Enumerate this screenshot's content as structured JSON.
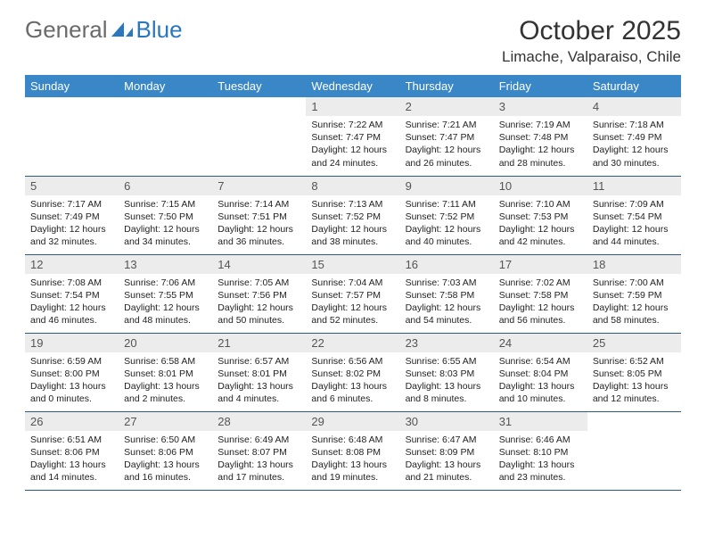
{
  "brand": {
    "general": "General",
    "blue": "Blue"
  },
  "title": "October 2025",
  "location": "Limache, Valparaiso, Chile",
  "colors": {
    "header_bg": "#3a87c8",
    "header_text": "#ffffff",
    "daynum_bg": "#ececec",
    "daynum_text": "#555555",
    "body_text": "#222222",
    "row_border": "#2a5a8c",
    "logo_gray": "#6a6a6a",
    "logo_blue": "#2a77bd"
  },
  "weekdays": [
    "Sunday",
    "Monday",
    "Tuesday",
    "Wednesday",
    "Thursday",
    "Friday",
    "Saturday"
  ],
  "weeks": [
    [
      {
        "n": "",
        "lines": []
      },
      {
        "n": "",
        "lines": []
      },
      {
        "n": "",
        "lines": []
      },
      {
        "n": "1",
        "lines": [
          "Sunrise: 7:22 AM",
          "Sunset: 7:47 PM",
          "Daylight: 12 hours and 24 minutes."
        ]
      },
      {
        "n": "2",
        "lines": [
          "Sunrise: 7:21 AM",
          "Sunset: 7:47 PM",
          "Daylight: 12 hours and 26 minutes."
        ]
      },
      {
        "n": "3",
        "lines": [
          "Sunrise: 7:19 AM",
          "Sunset: 7:48 PM",
          "Daylight: 12 hours and 28 minutes."
        ]
      },
      {
        "n": "4",
        "lines": [
          "Sunrise: 7:18 AM",
          "Sunset: 7:49 PM",
          "Daylight: 12 hours and 30 minutes."
        ]
      }
    ],
    [
      {
        "n": "5",
        "lines": [
          "Sunrise: 7:17 AM",
          "Sunset: 7:49 PM",
          "Daylight: 12 hours and 32 minutes."
        ]
      },
      {
        "n": "6",
        "lines": [
          "Sunrise: 7:15 AM",
          "Sunset: 7:50 PM",
          "Daylight: 12 hours and 34 minutes."
        ]
      },
      {
        "n": "7",
        "lines": [
          "Sunrise: 7:14 AM",
          "Sunset: 7:51 PM",
          "Daylight: 12 hours and 36 minutes."
        ]
      },
      {
        "n": "8",
        "lines": [
          "Sunrise: 7:13 AM",
          "Sunset: 7:52 PM",
          "Daylight: 12 hours and 38 minutes."
        ]
      },
      {
        "n": "9",
        "lines": [
          "Sunrise: 7:11 AM",
          "Sunset: 7:52 PM",
          "Daylight: 12 hours and 40 minutes."
        ]
      },
      {
        "n": "10",
        "lines": [
          "Sunrise: 7:10 AM",
          "Sunset: 7:53 PM",
          "Daylight: 12 hours and 42 minutes."
        ]
      },
      {
        "n": "11",
        "lines": [
          "Sunrise: 7:09 AM",
          "Sunset: 7:54 PM",
          "Daylight: 12 hours and 44 minutes."
        ]
      }
    ],
    [
      {
        "n": "12",
        "lines": [
          "Sunrise: 7:08 AM",
          "Sunset: 7:54 PM",
          "Daylight: 12 hours and 46 minutes."
        ]
      },
      {
        "n": "13",
        "lines": [
          "Sunrise: 7:06 AM",
          "Sunset: 7:55 PM",
          "Daylight: 12 hours and 48 minutes."
        ]
      },
      {
        "n": "14",
        "lines": [
          "Sunrise: 7:05 AM",
          "Sunset: 7:56 PM",
          "Daylight: 12 hours and 50 minutes."
        ]
      },
      {
        "n": "15",
        "lines": [
          "Sunrise: 7:04 AM",
          "Sunset: 7:57 PM",
          "Daylight: 12 hours and 52 minutes."
        ]
      },
      {
        "n": "16",
        "lines": [
          "Sunrise: 7:03 AM",
          "Sunset: 7:58 PM",
          "Daylight: 12 hours and 54 minutes."
        ]
      },
      {
        "n": "17",
        "lines": [
          "Sunrise: 7:02 AM",
          "Sunset: 7:58 PM",
          "Daylight: 12 hours and 56 minutes."
        ]
      },
      {
        "n": "18",
        "lines": [
          "Sunrise: 7:00 AM",
          "Sunset: 7:59 PM",
          "Daylight: 12 hours and 58 minutes."
        ]
      }
    ],
    [
      {
        "n": "19",
        "lines": [
          "Sunrise: 6:59 AM",
          "Sunset: 8:00 PM",
          "Daylight: 13 hours and 0 minutes."
        ]
      },
      {
        "n": "20",
        "lines": [
          "Sunrise: 6:58 AM",
          "Sunset: 8:01 PM",
          "Daylight: 13 hours and 2 minutes."
        ]
      },
      {
        "n": "21",
        "lines": [
          "Sunrise: 6:57 AM",
          "Sunset: 8:01 PM",
          "Daylight: 13 hours and 4 minutes."
        ]
      },
      {
        "n": "22",
        "lines": [
          "Sunrise: 6:56 AM",
          "Sunset: 8:02 PM",
          "Daylight: 13 hours and 6 minutes."
        ]
      },
      {
        "n": "23",
        "lines": [
          "Sunrise: 6:55 AM",
          "Sunset: 8:03 PM",
          "Daylight: 13 hours and 8 minutes."
        ]
      },
      {
        "n": "24",
        "lines": [
          "Sunrise: 6:54 AM",
          "Sunset: 8:04 PM",
          "Daylight: 13 hours and 10 minutes."
        ]
      },
      {
        "n": "25",
        "lines": [
          "Sunrise: 6:52 AM",
          "Sunset: 8:05 PM",
          "Daylight: 13 hours and 12 minutes."
        ]
      }
    ],
    [
      {
        "n": "26",
        "lines": [
          "Sunrise: 6:51 AM",
          "Sunset: 8:06 PM",
          "Daylight: 13 hours and 14 minutes."
        ]
      },
      {
        "n": "27",
        "lines": [
          "Sunrise: 6:50 AM",
          "Sunset: 8:06 PM",
          "Daylight: 13 hours and 16 minutes."
        ]
      },
      {
        "n": "28",
        "lines": [
          "Sunrise: 6:49 AM",
          "Sunset: 8:07 PM",
          "Daylight: 13 hours and 17 minutes."
        ]
      },
      {
        "n": "29",
        "lines": [
          "Sunrise: 6:48 AM",
          "Sunset: 8:08 PM",
          "Daylight: 13 hours and 19 minutes."
        ]
      },
      {
        "n": "30",
        "lines": [
          "Sunrise: 6:47 AM",
          "Sunset: 8:09 PM",
          "Daylight: 13 hours and 21 minutes."
        ]
      },
      {
        "n": "31",
        "lines": [
          "Sunrise: 6:46 AM",
          "Sunset: 8:10 PM",
          "Daylight: 13 hours and 23 minutes."
        ]
      },
      {
        "n": "",
        "lines": []
      }
    ]
  ]
}
